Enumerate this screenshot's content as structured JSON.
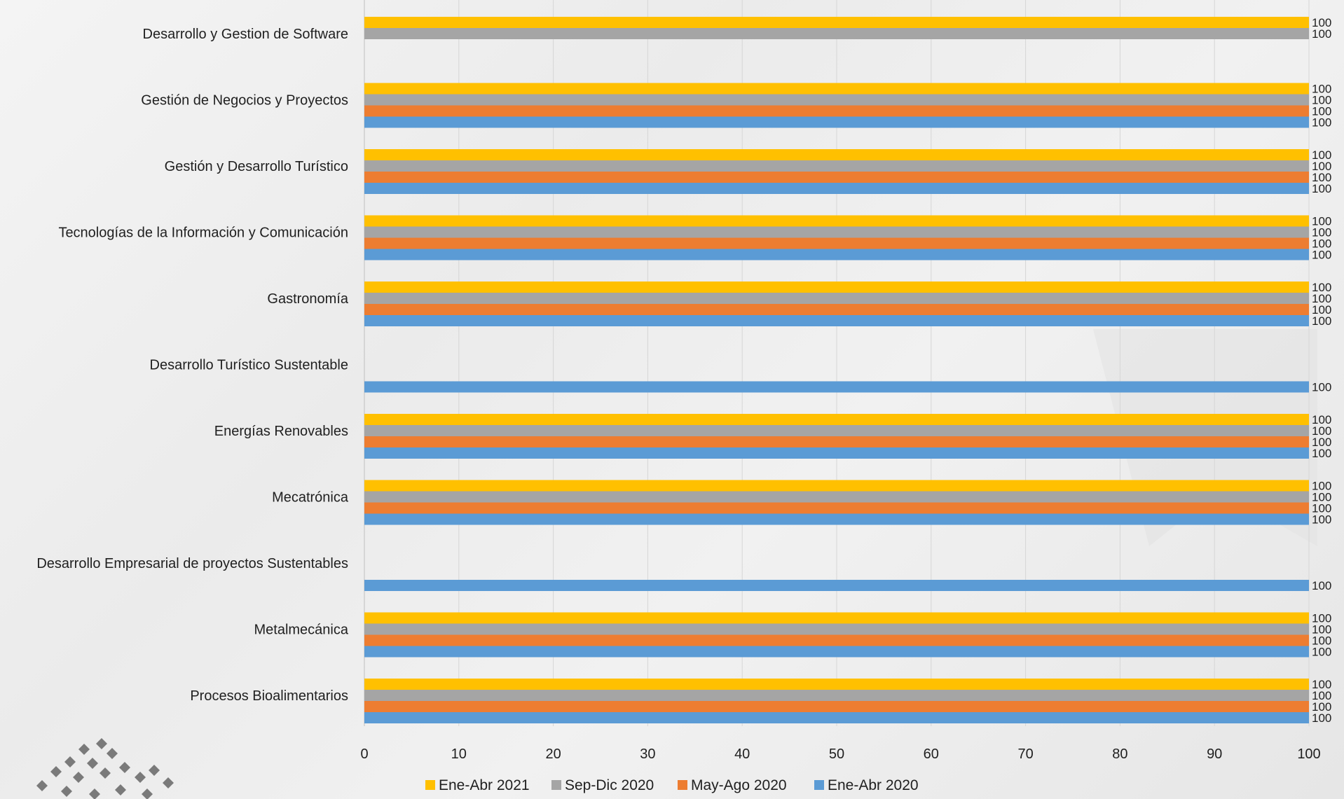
{
  "chart_data": {
    "type": "bar",
    "orientation": "horizontal",
    "categories": [
      "Desarrollo y Gestion de Software",
      "Gestión de Negocios y Proyectos",
      "Gestión y Desarrollo Turístico",
      "Tecnologías de la Información y Comunicación",
      "Gastronomía",
      "Desarrollo Turístico Sustentable",
      "Energías Renovables",
      "Mecatrónica",
      "Desarrollo Empresarial de proyectos Sustentables",
      "Metalmecánica",
      "Procesos Bioalimentarios"
    ],
    "series": [
      {
        "name": "Ene-Abr 2021",
        "color": "#FFC000",
        "values": [
          100,
          100,
          100,
          100,
          100,
          null,
          100,
          100,
          null,
          100,
          100
        ]
      },
      {
        "name": "Sep-Dic 2020",
        "color": "#A5A5A5",
        "values": [
          100,
          100,
          100,
          100,
          100,
          null,
          100,
          100,
          null,
          100,
          100
        ]
      },
      {
        "name": "May-Ago 2020",
        "color": "#ED7D31",
        "values": [
          null,
          100,
          100,
          100,
          100,
          null,
          100,
          100,
          null,
          100,
          100
        ]
      },
      {
        "name": "Ene-Abr 2020",
        "color": "#5B9BD5",
        "values": [
          null,
          100,
          100,
          100,
          100,
          100,
          100,
          100,
          100,
          100,
          100
        ]
      }
    ],
    "xlim": [
      0,
      100
    ],
    "xticks": [
      0,
      10,
      20,
      30,
      40,
      50,
      60,
      70,
      80,
      90,
      100
    ],
    "grid": true,
    "legend_position": "bottom",
    "data_labels": true
  }
}
